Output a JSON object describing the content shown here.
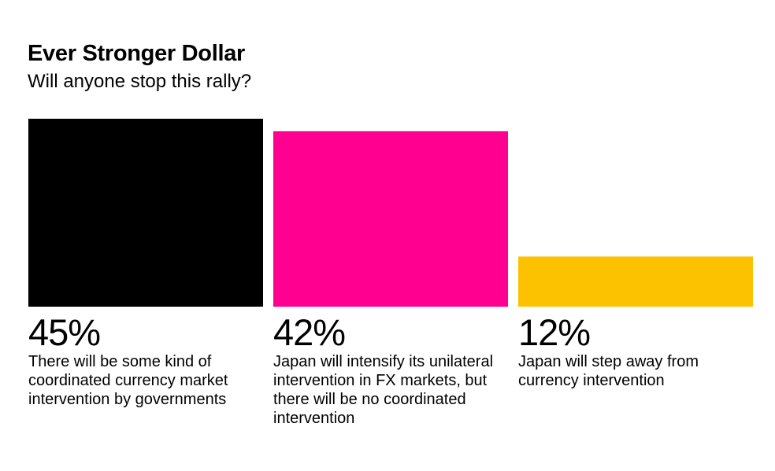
{
  "title": "Ever Stronger Dollar",
  "subtitle": "Will anyone stop this rally?",
  "chart_data": {
    "type": "bar",
    "title": "Ever Stronger Dollar",
    "subtitle": "Will anyone stop this rally?",
    "unit": "%",
    "ylim": [
      0,
      45
    ],
    "bars": [
      {
        "value": 45,
        "label": "45%",
        "description": "There will be some kind of coordinated currency market intervention by governments",
        "color": "#000000"
      },
      {
        "value": 42,
        "label": "42%",
        "description": "Japan will intensify its unilateral intervention in FX markets, but there will be no coordinated intervention",
        "color": "#FF0090"
      },
      {
        "value": 12,
        "label": "12%",
        "description": "Japan will step away from currency intervention",
        "color": "#FCC200"
      }
    ]
  }
}
